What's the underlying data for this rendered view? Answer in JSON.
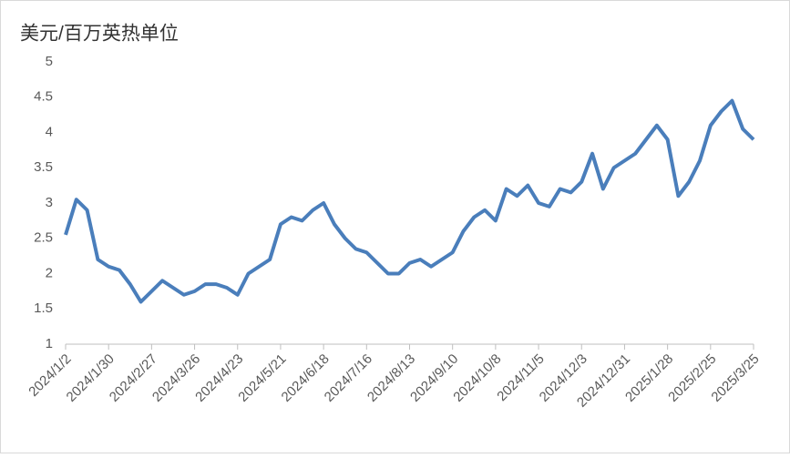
{
  "chart_data": {
    "type": "line",
    "title": "美元/百万英热单位",
    "x": [
      "2024/1/2",
      "2024/1/9",
      "2024/1/16",
      "2024/1/23",
      "2024/1/30",
      "2024/2/6",
      "2024/2/13",
      "2024/2/20",
      "2024/2/27",
      "2024/3/5",
      "2024/3/12",
      "2024/3/19",
      "2024/3/26",
      "2024/4/2",
      "2024/4/9",
      "2024/4/16",
      "2024/4/23",
      "2024/4/30",
      "2024/5/7",
      "2024/5/14",
      "2024/5/21",
      "2024/5/28",
      "2024/6/4",
      "2024/6/11",
      "2024/6/18",
      "2024/6/25",
      "2024/7/2",
      "2024/7/9",
      "2024/7/16",
      "2024/7/23",
      "2024/7/30",
      "2024/8/6",
      "2024/8/13",
      "2024/8/20",
      "2024/8/27",
      "2024/9/3",
      "2024/9/10",
      "2024/9/17",
      "2024/9/24",
      "2024/10/1",
      "2024/10/8",
      "2024/10/15",
      "2024/10/22",
      "2024/10/29",
      "2024/11/5",
      "2024/11/12",
      "2024/11/19",
      "2024/11/26",
      "2024/12/3",
      "2024/12/10",
      "2024/12/17",
      "2024/12/24",
      "2024/12/31",
      "2025/1/7",
      "2025/1/14",
      "2025/1/21",
      "2025/1/28",
      "2025/2/4",
      "2025/2/11",
      "2025/2/18",
      "2025/2/25",
      "2025/3/4",
      "2025/3/11",
      "2025/3/18",
      "2025/3/25"
    ],
    "values": [
      2.55,
      3.05,
      2.9,
      2.2,
      2.1,
      2.05,
      1.85,
      1.6,
      1.75,
      1.9,
      1.8,
      1.7,
      1.75,
      1.85,
      1.85,
      1.8,
      1.7,
      2.0,
      2.1,
      2.2,
      2.7,
      2.8,
      2.75,
      2.9,
      3.0,
      2.7,
      2.5,
      2.35,
      2.3,
      2.15,
      2.0,
      2.0,
      2.15,
      2.2,
      2.1,
      2.2,
      2.3,
      2.6,
      2.8,
      2.9,
      2.75,
      3.2,
      3.1,
      3.25,
      3.0,
      2.95,
      3.2,
      3.15,
      3.3,
      3.7,
      3.2,
      3.5,
      3.6,
      3.7,
      3.9,
      4.1,
      3.9,
      3.1,
      3.3,
      3.6,
      4.1,
      4.3,
      4.45,
      4.05,
      3.9
    ],
    "color": "#4a7ebb",
    "xlim": [
      "2024/1/2",
      "2025/3/25"
    ],
    "xticks": [
      "2024/1/2",
      "2024/1/30",
      "2024/2/27",
      "2024/3/26",
      "2024/4/23",
      "2024/5/21",
      "2024/6/18",
      "2024/7/16",
      "2024/8/13",
      "2024/9/10",
      "2024/10/8",
      "2024/11/5",
      "2024/12/3",
      "2024/12/31",
      "2025/1/28",
      "2025/2/25",
      "2025/3/25"
    ],
    "ylim": [
      1,
      5
    ],
    "yticks": [
      1,
      1.5,
      2,
      2.5,
      3,
      3.5,
      4,
      4.5,
      5
    ],
    "grid": false
  }
}
